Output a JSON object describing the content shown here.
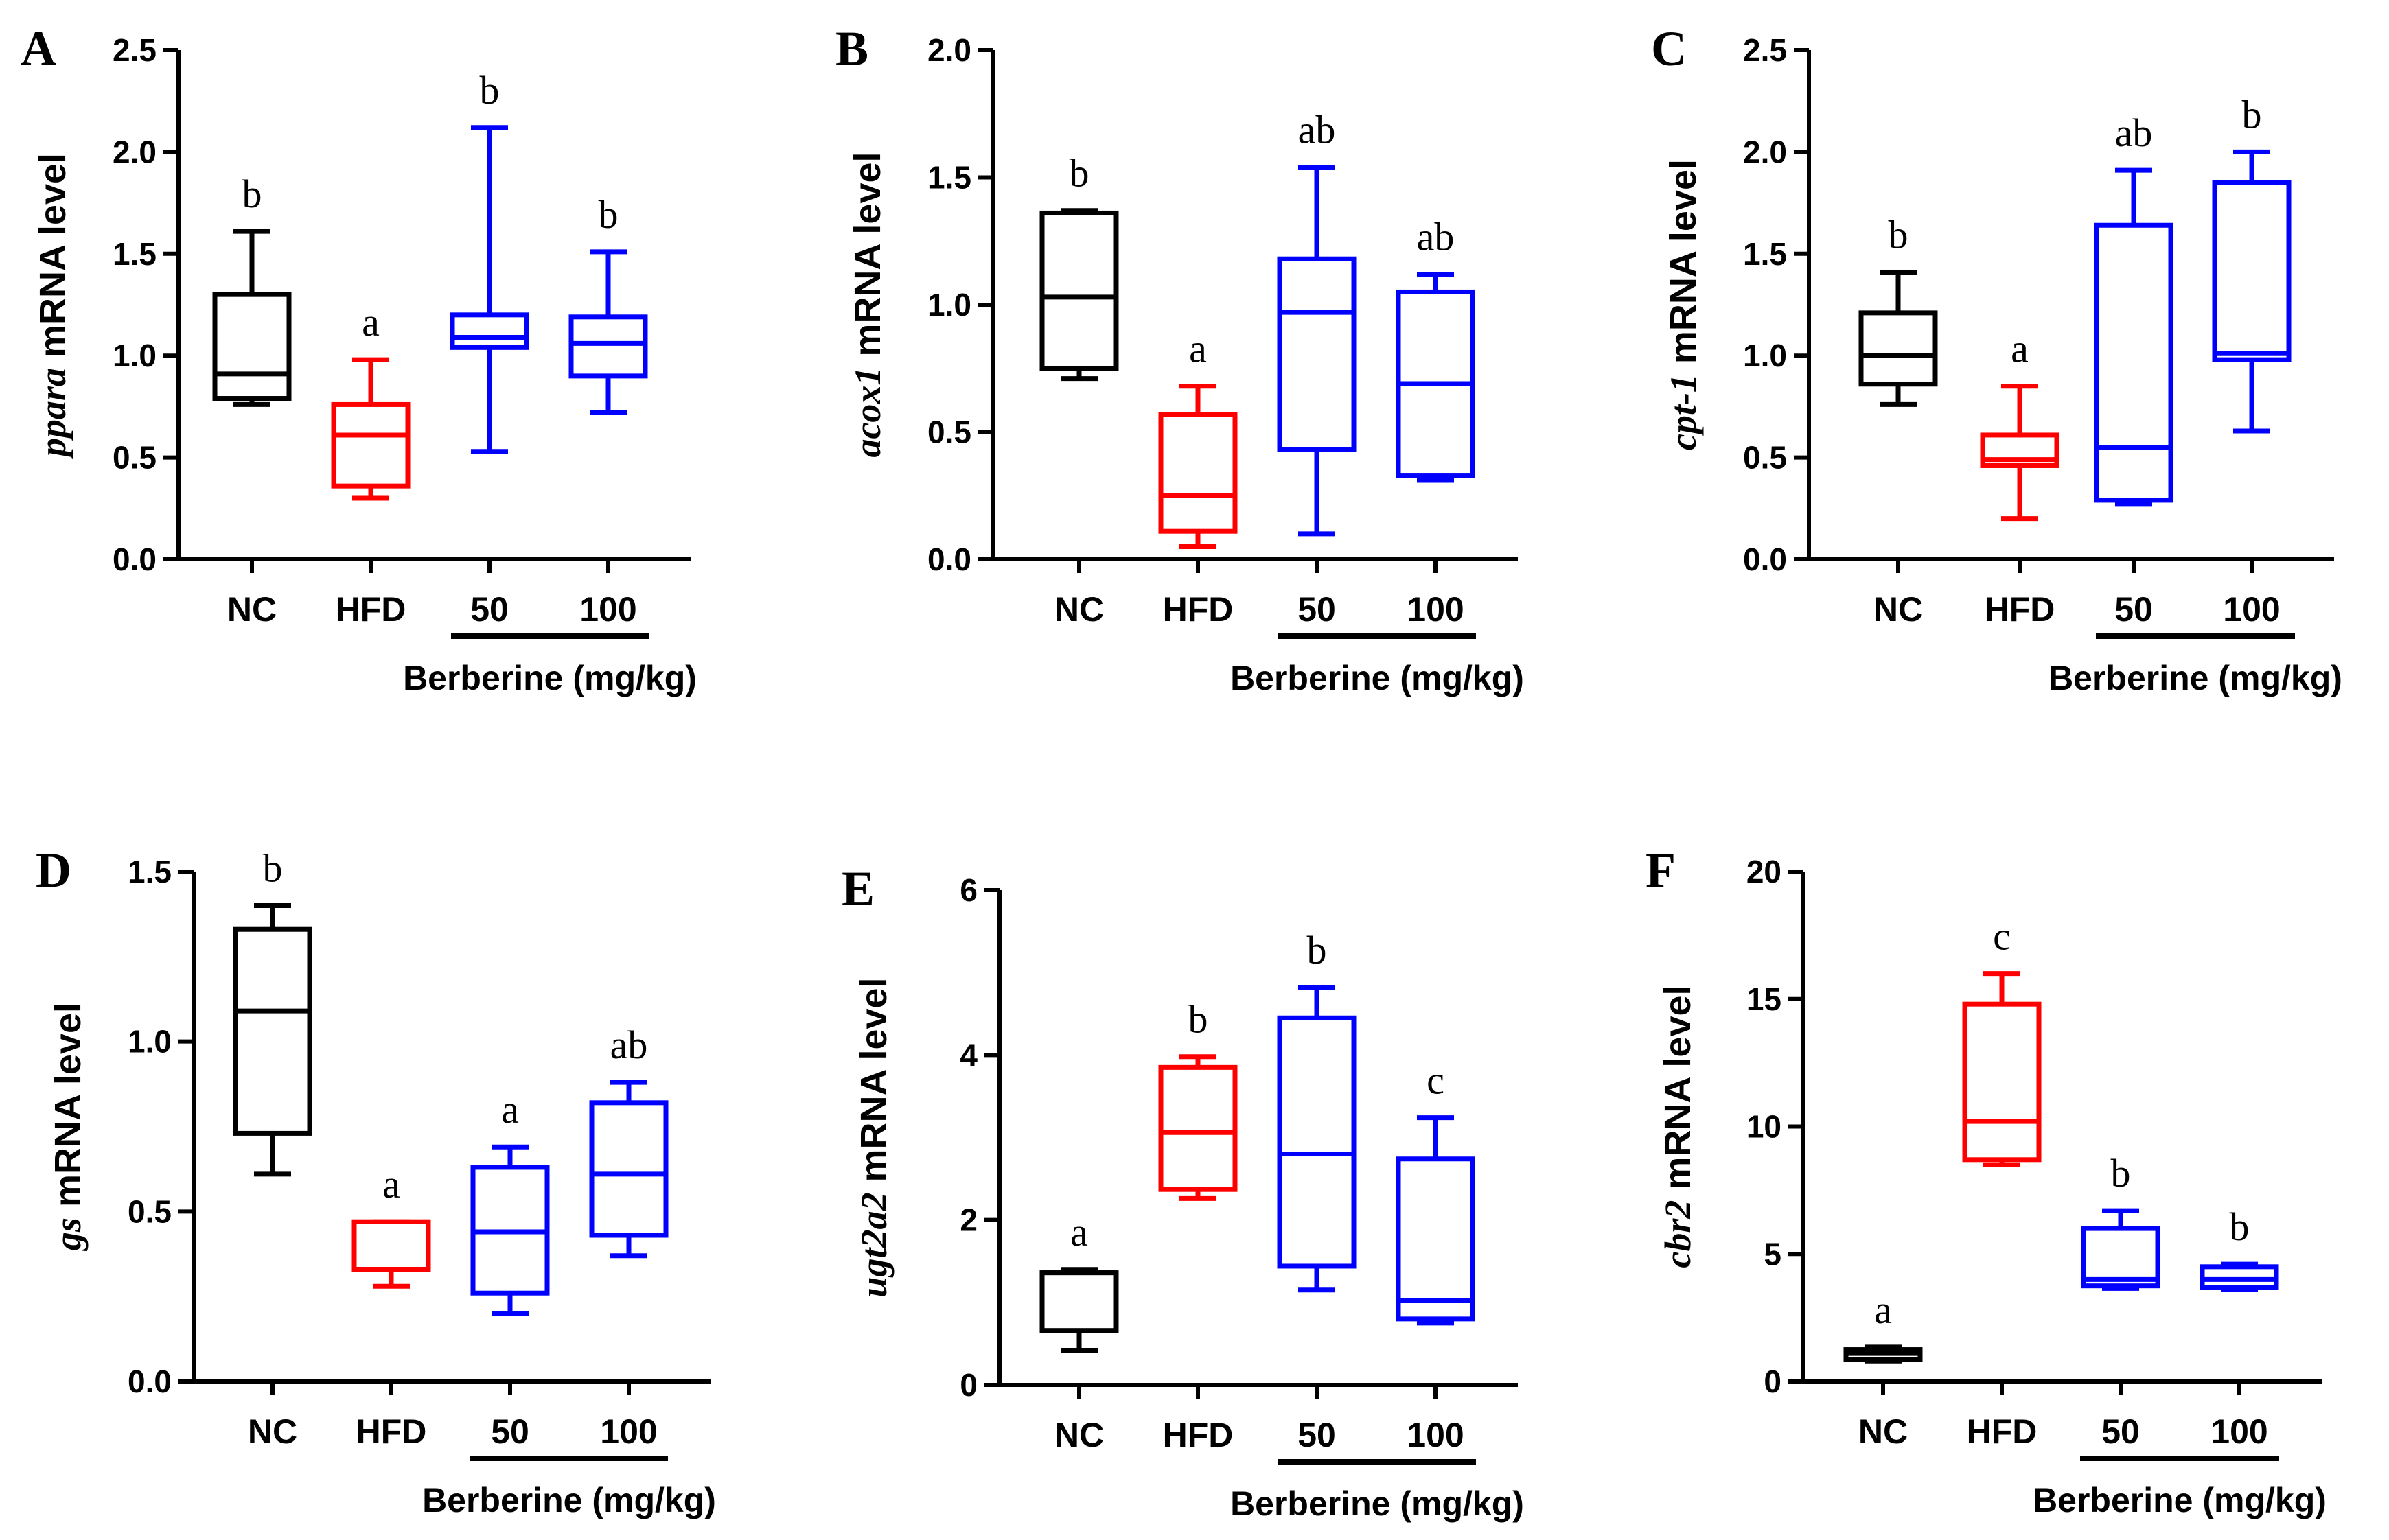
{
  "figure": {
    "group_label": "Berberine (mg/kg)",
    "categories": [
      "NC",
      "HFD",
      "50",
      "100"
    ],
    "colors": [
      "#000000",
      "#ff0000",
      "#0000ff",
      "#0000ff"
    ]
  },
  "chart_data": [
    {
      "type": "boxplot",
      "panel": "A",
      "gene": "ppara",
      "ylabel": "mRNA level",
      "ylim": [
        0,
        2.5
      ],
      "yticks": [
        "0.0",
        "0.5",
        "1.0",
        "1.5",
        "2.0",
        "2.5"
      ],
      "categories": [
        "NC",
        "HFD",
        "50",
        "100"
      ],
      "boxes": [
        {
          "min": 0.76,
          "q1": 0.79,
          "median": 0.91,
          "q3": 1.3,
          "max": 1.61
        },
        {
          "min": 0.3,
          "q1": 0.36,
          "median": 0.61,
          "q3": 0.76,
          "max": 0.98
        },
        {
          "min": 0.53,
          "q1": 1.04,
          "median": 1.09,
          "q3": 1.2,
          "max": 2.12
        },
        {
          "min": 0.72,
          "q1": 0.9,
          "median": 1.06,
          "q3": 1.19,
          "max": 1.51
        }
      ],
      "letters": [
        "b",
        "a",
        "b",
        "b"
      ]
    },
    {
      "type": "boxplot",
      "panel": "B",
      "gene": "acox1",
      "ylabel": "mRNA level",
      "ylim": [
        0,
        2.0
      ],
      "yticks": [
        "0.0",
        "0.5",
        "1.0",
        "1.5",
        "2.0"
      ],
      "categories": [
        "NC",
        "HFD",
        "50",
        "100"
      ],
      "boxes": [
        {
          "min": 0.71,
          "q1": 0.75,
          "median": 1.03,
          "q3": 1.36,
          "max": 1.37
        },
        {
          "min": 0.05,
          "q1": 0.11,
          "median": 0.25,
          "q3": 0.57,
          "max": 0.68
        },
        {
          "min": 0.1,
          "q1": 0.43,
          "median": 0.97,
          "q3": 1.18,
          "max": 1.54
        },
        {
          "min": 0.31,
          "q1": 0.33,
          "median": 0.69,
          "q3": 1.05,
          "max": 1.12
        }
      ],
      "letters": [
        "b",
        "a",
        "ab",
        "ab"
      ]
    },
    {
      "type": "boxplot",
      "panel": "C",
      "gene": "cpt-1",
      "ylabel": "mRNA level",
      "ylim": [
        0,
        2.5
      ],
      "yticks": [
        "0.0",
        "0.5",
        "1.0",
        "1.5",
        "2.0",
        "2.5"
      ],
      "categories": [
        "NC",
        "HFD",
        "50",
        "100"
      ],
      "boxes": [
        {
          "min": 0.76,
          "q1": 0.86,
          "median": 1.0,
          "q3": 1.21,
          "max": 1.41
        },
        {
          "min": 0.2,
          "q1": 0.46,
          "median": 0.49,
          "q3": 0.61,
          "max": 0.85
        },
        {
          "min": 0.27,
          "q1": 0.29,
          "median": 0.55,
          "q3": 1.64,
          "max": 1.91
        },
        {
          "min": 0.63,
          "q1": 0.98,
          "median": 1.01,
          "q3": 1.85,
          "max": 2.0
        }
      ],
      "letters": [
        "b",
        "a",
        "ab",
        "b"
      ]
    },
    {
      "type": "boxplot",
      "panel": "D",
      "gene": "gs",
      "ylabel": "mRNA level",
      "ylim": [
        0,
        1.5
      ],
      "yticks": [
        "0.0",
        "0.5",
        "1.0",
        "1.5"
      ],
      "categories": [
        "NC",
        "HFD",
        "50",
        "100"
      ],
      "boxes": [
        {
          "min": 0.61,
          "q1": 0.73,
          "median": 1.09,
          "q3": 1.33,
          "max": 1.4
        },
        {
          "min": 0.28,
          "q1": 0.33,
          "median": 0.33,
          "q3": 0.47,
          "max": 0.47
        },
        {
          "min": 0.2,
          "q1": 0.26,
          "median": 0.44,
          "q3": 0.63,
          "max": 0.69
        },
        {
          "min": 0.37,
          "q1": 0.43,
          "median": 0.61,
          "q3": 0.82,
          "max": 0.88
        }
      ],
      "letters": [
        "b",
        "a",
        "a",
        "ab"
      ]
    },
    {
      "type": "boxplot",
      "panel": "E",
      "gene": "ugt2a2",
      "ylabel": "mRNA level",
      "ylim": [
        0,
        6
      ],
      "yticks": [
        "0",
        "2",
        "4",
        "6"
      ],
      "categories": [
        "NC",
        "HFD",
        "50",
        "100"
      ],
      "boxes": [
        {
          "min": 0.42,
          "q1": 0.66,
          "median": 1.36,
          "q3": 1.36,
          "max": 1.4
        },
        {
          "min": 2.26,
          "q1": 2.37,
          "median": 3.06,
          "q3": 3.85,
          "max": 3.98
        },
        {
          "min": 1.15,
          "q1": 1.44,
          "median": 2.8,
          "q3": 4.45,
          "max": 4.82
        },
        {
          "min": 0.75,
          "q1": 0.8,
          "median": 1.02,
          "q3": 2.74,
          "max": 3.24
        }
      ],
      "letters": [
        "a",
        "b",
        "b",
        "c"
      ]
    },
    {
      "type": "boxplot",
      "panel": "F",
      "gene": "cbr2",
      "ylabel": "mRNA level",
      "ylim": [
        0,
        20
      ],
      "yticks": [
        "0",
        "5",
        "10",
        "15",
        "20"
      ],
      "categories": [
        "NC",
        "HFD",
        "50",
        "100"
      ],
      "boxes": [
        {
          "min": 0.8,
          "q1": 0.85,
          "median": 1.1,
          "q3": 1.25,
          "max": 1.35
        },
        {
          "min": 8.5,
          "q1": 8.7,
          "median": 10.2,
          "q3": 14.8,
          "max": 16.0
        },
        {
          "min": 3.65,
          "q1": 3.75,
          "median": 4.0,
          "q3": 6.0,
          "max": 6.7
        },
        {
          "min": 3.6,
          "q1": 3.7,
          "median": 4.0,
          "q3": 4.5,
          "max": 4.6
        }
      ],
      "letters": [
        "a",
        "c",
        "b",
        "b"
      ]
    }
  ]
}
